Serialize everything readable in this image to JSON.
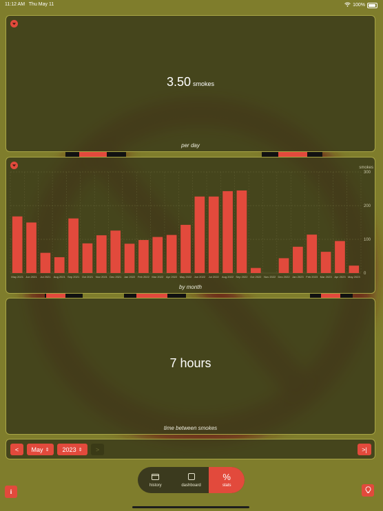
{
  "status": {
    "time": "11:12 AM",
    "date": "Thu May 11",
    "battery": "100%"
  },
  "per_day": {
    "value": "3.50",
    "unit": "smokes",
    "caption": "per day"
  },
  "chart_data": {
    "type": "bar",
    "ylabel": "smokes",
    "ylim": [
      0,
      300
    ],
    "yticks": [
      0,
      100,
      200,
      300
    ],
    "grid": true,
    "color": "#e24a3c",
    "categories": [
      "May 2021",
      "Jun 2021",
      "Jul 2021",
      "Aug 2021",
      "Sep 2021",
      "Oct 2021",
      "Nov 2021",
      "Dec 2021",
      "Jan 2022",
      "Feb 2022",
      "Mar 2022",
      "Apr 2022",
      "May 2022",
      "Jun 2022",
      "Jul 2022",
      "Aug 2022",
      "Sep 2022",
      "Oct 2022",
      "Nov 2022",
      "Dec 2022",
      "Jan 2023",
      "Feb 2023",
      "Mar 2023",
      "Apr 2023",
      "May 2023"
    ],
    "values": [
      168,
      150,
      60,
      47,
      162,
      88,
      112,
      126,
      87,
      98,
      107,
      113,
      143,
      227,
      227,
      243,
      245,
      15,
      0,
      44,
      78,
      114,
      63,
      95,
      22
    ]
  },
  "by_month": {
    "caption": "by month"
  },
  "between": {
    "value": "7 hours",
    "caption": "time between smokes"
  },
  "controls": {
    "month": "May",
    "year": "2023",
    "prev": "<",
    "next": ">",
    "last": ">|"
  },
  "tabs": [
    {
      "label": "history",
      "icon": "calendar-icon"
    },
    {
      "label": "dashboard",
      "icon": "square-icon"
    },
    {
      "label": "stats",
      "icon": "percent-icon"
    }
  ],
  "buttons": {
    "info": "i"
  },
  "colors": {
    "accent": "#e24a3c",
    "background": "#7f7d2c",
    "card": "#3e3e1a"
  }
}
